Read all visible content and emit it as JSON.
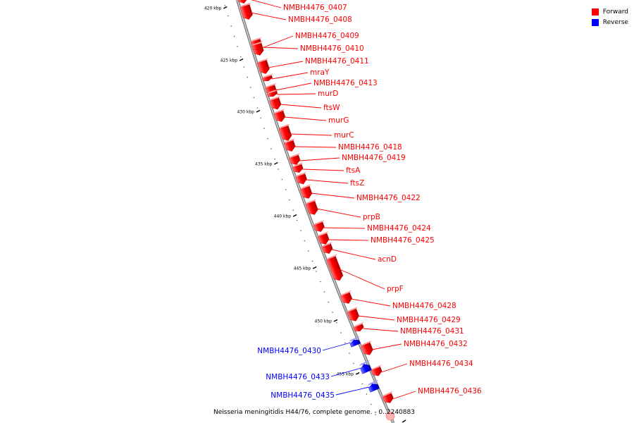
{
  "legend": {
    "forward_label": "Forward",
    "reverse_label": "Reverse",
    "forward_color": "#ff0000",
    "reverse_color": "#0000ff"
  },
  "caption": {
    "genome": "Neisseria meningitidis H44/76, complete genome.",
    "range_text": "- 0..2240883"
  },
  "scale_ticks": [
    "420 kbp",
    "425 kbp",
    "430 kbp",
    "435 kbp",
    "440 kbp",
    "445 kbp",
    "450 kbp",
    "455 kbp"
  ],
  "genes": [
    {
      "name": "NMBH4476_0407",
      "strand": "forward"
    },
    {
      "name": "NMBH4476_0408",
      "strand": "forward"
    },
    {
      "name": "NMBH4476_0409",
      "strand": "forward"
    },
    {
      "name": "NMBH4476_0410",
      "strand": "forward"
    },
    {
      "name": "NMBH4476_0411",
      "strand": "forward"
    },
    {
      "name": "mraY",
      "strand": "forward"
    },
    {
      "name": "NMBH4476_0413",
      "strand": "forward"
    },
    {
      "name": "murD",
      "strand": "forward"
    },
    {
      "name": "ftsW",
      "strand": "forward"
    },
    {
      "name": "murG",
      "strand": "forward"
    },
    {
      "name": "murC",
      "strand": "forward"
    },
    {
      "name": "NMBH4476_0418",
      "strand": "forward"
    },
    {
      "name": "NMBH4476_0419",
      "strand": "forward"
    },
    {
      "name": "ftsA",
      "strand": "forward"
    },
    {
      "name": "ftsZ",
      "strand": "forward"
    },
    {
      "name": "NMBH4476_0422",
      "strand": "forward"
    },
    {
      "name": "prpB",
      "strand": "forward"
    },
    {
      "name": "NMBH4476_0424",
      "strand": "forward"
    },
    {
      "name": "NMBH4476_0425",
      "strand": "forward"
    },
    {
      "name": "acnD",
      "strand": "forward"
    },
    {
      "name": "prpF",
      "strand": "forward"
    },
    {
      "name": "NMBH4476_0428",
      "strand": "forward"
    },
    {
      "name": "NMBH4476_0429",
      "strand": "forward"
    },
    {
      "name": "NMBH4476_0431",
      "strand": "forward"
    },
    {
      "name": "NMBH4476_0432",
      "strand": "forward"
    },
    {
      "name": "NMBH4476_0434",
      "strand": "forward"
    },
    {
      "name": "NMBH4476_0436",
      "strand": "forward"
    },
    {
      "name": "NMBH4476_0430",
      "strand": "reverse"
    },
    {
      "name": "NMBH4476_0433",
      "strand": "reverse"
    },
    {
      "name": "NMBH4476_0435",
      "strand": "reverse"
    }
  ]
}
